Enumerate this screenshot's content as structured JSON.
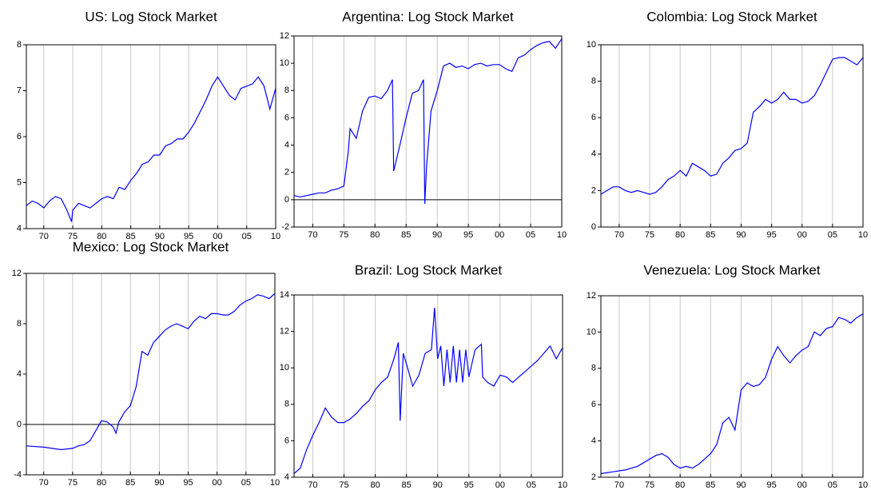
{
  "chart_data": [
    {
      "type": "line",
      "title": "US: Log Stock Market",
      "x": [
        1967,
        1968,
        1969,
        1970,
        1971,
        1972,
        1973,
        1974,
        1974.8,
        1975,
        1976,
        1977,
        1978,
        1979,
        1980,
        1981,
        1982,
        1983,
        1984,
        1985,
        1986,
        1987,
        1988,
        1989,
        1990,
        1991,
        1992,
        1993,
        1994,
        1995,
        1996,
        1997,
        1998,
        1999,
        2000,
        2001,
        2002,
        2003,
        2004,
        2005,
        2006,
        2007,
        2008,
        2009,
        2010
      ],
      "series": [
        {
          "color": "#0000ff",
          "values": [
            4.5,
            4.6,
            4.55,
            4.45,
            4.6,
            4.7,
            4.65,
            4.4,
            4.15,
            4.4,
            4.55,
            4.5,
            4.45,
            4.55,
            4.65,
            4.7,
            4.65,
            4.9,
            4.85,
            5.05,
            5.2,
            5.4,
            5.45,
            5.6,
            5.6,
            5.8,
            5.85,
            5.95,
            5.95,
            6.1,
            6.3,
            6.55,
            6.8,
            7.1,
            7.3,
            7.1,
            6.9,
            6.8,
            7.05,
            7.1,
            7.15,
            7.3,
            7.1,
            6.6,
            7.05
          ]
        }
      ],
      "xlim": [
        1967,
        2010
      ],
      "xticks": [
        {
          "value": 1970,
          "label": "70"
        },
        {
          "value": 1975,
          "label": "75"
        },
        {
          "value": 1980,
          "label": "80"
        },
        {
          "value": 1985,
          "label": "85"
        },
        {
          "value": 1990,
          "label": "90"
        },
        {
          "value": 1995,
          "label": "95"
        },
        {
          "value": 2000,
          "label": "00"
        },
        {
          "value": 2005,
          "label": "05"
        },
        {
          "value": 2010,
          "label": "10"
        }
      ],
      "ylim": [
        4,
        8
      ],
      "yticks": [
        4,
        5,
        6,
        7,
        8
      ],
      "grid": "x",
      "zero_line": false
    },
    {
      "type": "line",
      "title": "Argentina: Log Stock Market",
      "x": [
        1967,
        1968,
        1969,
        1970,
        1971,
        1972,
        1973,
        1974,
        1975,
        1975.7,
        1976,
        1977,
        1978,
        1979,
        1980,
        1981,
        1982,
        1982.8,
        1983,
        1984,
        1985,
        1986,
        1987,
        1987.8,
        1988,
        1988.3,
        1989,
        1990,
        1991,
        1992,
        1993,
        1994,
        1995,
        1996,
        1997,
        1998,
        1999,
        2000,
        2001,
        2002,
        2003,
        2004,
        2005,
        2006,
        2007,
        2008,
        2009,
        2010
      ],
      "series": [
        {
          "color": "#0000ff",
          "values": [
            0.3,
            0.2,
            0.3,
            0.4,
            0.5,
            0.5,
            0.7,
            0.8,
            1.0,
            3.5,
            5.2,
            4.5,
            6.5,
            7.5,
            7.6,
            7.4,
            8.0,
            8.8,
            2.1,
            4.0,
            6.0,
            7.8,
            8.0,
            8.8,
            -0.3,
            2.5,
            6.5,
            8.0,
            9.8,
            10.0,
            9.7,
            9.8,
            9.6,
            9.9,
            10.0,
            9.8,
            9.9,
            9.9,
            9.6,
            9.4,
            10.4,
            10.6,
            11.0,
            11.3,
            11.5,
            11.6,
            11.1,
            11.8
          ]
        }
      ],
      "xlim": [
        1967,
        2010
      ],
      "xticks": [
        {
          "value": 1970,
          "label": "70"
        },
        {
          "value": 1975,
          "label": "75"
        },
        {
          "value": 1980,
          "label": "80"
        },
        {
          "value": 1985,
          "label": "85"
        },
        {
          "value": 1990,
          "label": "90"
        },
        {
          "value": 1995,
          "label": "95"
        },
        {
          "value": 2000,
          "label": "00"
        },
        {
          "value": 2005,
          "label": "05"
        },
        {
          "value": 2010,
          "label": "10"
        }
      ],
      "ylim": [
        -2,
        12
      ],
      "yticks": [
        -2,
        0,
        2,
        4,
        6,
        8,
        10,
        12
      ],
      "grid": "x",
      "zero_line": true
    },
    {
      "type": "line",
      "title": "Colombia: Log Stock Market",
      "x": [
        1967,
        1968,
        1969,
        1970,
        1971,
        1972,
        1973,
        1974,
        1975,
        1976,
        1977,
        1978,
        1979,
        1980,
        1981,
        1982,
        1983,
        1984,
        1985,
        1986,
        1987,
        1988,
        1989,
        1990,
        1991,
        1992,
        1993,
        1994,
        1995,
        1996,
        1997,
        1998,
        1999,
        2000,
        2001,
        2002,
        2003,
        2004,
        2005,
        2006,
        2007,
        2008,
        2009,
        2010
      ],
      "series": [
        {
          "color": "#0000ff",
          "values": [
            1.8,
            2.0,
            2.2,
            2.2,
            2.0,
            1.9,
            2.0,
            1.9,
            1.8,
            1.9,
            2.2,
            2.6,
            2.8,
            3.1,
            2.8,
            3.5,
            3.3,
            3.1,
            2.8,
            2.9,
            3.5,
            3.8,
            4.2,
            4.3,
            4.6,
            6.3,
            6.6,
            7.0,
            6.8,
            7.0,
            7.4,
            7.0,
            7.0,
            6.8,
            6.9,
            7.2,
            7.8,
            8.5,
            9.2,
            9.3,
            9.3,
            9.1,
            8.9,
            9.3
          ]
        }
      ],
      "xlim": [
        1967,
        2010
      ],
      "xticks": [
        {
          "value": 1970,
          "label": "70"
        },
        {
          "value": 1975,
          "label": "75"
        },
        {
          "value": 1980,
          "label": "80"
        },
        {
          "value": 1985,
          "label": "85"
        },
        {
          "value": 1990,
          "label": "90"
        },
        {
          "value": 1995,
          "label": "95"
        },
        {
          "value": 2000,
          "label": "00"
        },
        {
          "value": 2005,
          "label": "05"
        },
        {
          "value": 2010,
          "label": "10"
        }
      ],
      "ylim": [
        0,
        10
      ],
      "yticks": [
        0,
        2,
        4,
        6,
        8,
        10
      ],
      "grid": "x",
      "zero_line": false
    },
    {
      "type": "line",
      "title": "Mexico: Log Stock Market",
      "x": [
        1967,
        1970,
        1973,
        1975,
        1976,
        1977,
        1978,
        1979,
        1980,
        1981,
        1982,
        1982.5,
        1983,
        1984,
        1985,
        1986,
        1987,
        1988,
        1989,
        1990,
        1991,
        1992,
        1993,
        1994,
        1995,
        1996,
        1997,
        1998,
        1999,
        2000,
        2001,
        2002,
        2003,
        2004,
        2005,
        2006,
        2007,
        2008,
        2009,
        2010
      ],
      "series": [
        {
          "color": "#0000ff",
          "values": [
            -1.7,
            -1.8,
            -2.0,
            -1.9,
            -1.7,
            -1.6,
            -1.3,
            -0.5,
            0.3,
            0.2,
            -0.2,
            -0.7,
            0.2,
            1.0,
            1.5,
            3.0,
            5.8,
            5.5,
            6.5,
            7.0,
            7.5,
            7.8,
            8.0,
            7.8,
            7.6,
            8.2,
            8.6,
            8.4,
            8.8,
            8.8,
            8.7,
            8.7,
            9.0,
            9.5,
            9.8,
            10.0,
            10.3,
            10.2,
            10.0,
            10.4
          ]
        }
      ],
      "xlim": [
        1967,
        2010
      ],
      "xticks": [
        {
          "value": 1970,
          "label": "70"
        },
        {
          "value": 1975,
          "label": "75"
        },
        {
          "value": 1980,
          "label": "80"
        },
        {
          "value": 1985,
          "label": "85"
        },
        {
          "value": 1990,
          "label": "90"
        },
        {
          "value": 1995,
          "label": "95"
        },
        {
          "value": 2000,
          "label": "00"
        },
        {
          "value": 2005,
          "label": "05"
        },
        {
          "value": 2010,
          "label": "10"
        }
      ],
      "ylim": [
        -4,
        12
      ],
      "yticks": [
        -4,
        0,
        4,
        8,
        12
      ],
      "grid": "x",
      "zero_line": true
    },
    {
      "type": "line",
      "title": "Brazil: Log Stock Market",
      "x": [
        1967,
        1968,
        1969,
        1970,
        1971,
        1972,
        1973,
        1974,
        1975,
        1976,
        1977,
        1978,
        1979,
        1980,
        1981,
        1982,
        1983,
        1983.7,
        1984,
        1984.5,
        1985,
        1986,
        1987,
        1988,
        1989,
        1989.5,
        1990,
        1990.5,
        1991,
        1991.5,
        1992,
        1992.5,
        1993,
        1993.5,
        1994,
        1994.5,
        1995,
        1996,
        1997,
        1997.2,
        1998,
        1999,
        2000,
        2001,
        2002,
        2003,
        2004,
        2005,
        2006,
        2007,
        2008,
        2009,
        2010
      ],
      "series": [
        {
          "color": "#0000ff",
          "values": [
            4.2,
            4.5,
            5.5,
            6.3,
            7.0,
            7.8,
            7.3,
            7.0,
            7.0,
            7.2,
            7.5,
            7.9,
            8.2,
            8.8,
            9.2,
            9.5,
            10.5,
            11.4,
            7.1,
            10.8,
            10.2,
            9.0,
            9.6,
            10.8,
            11.0,
            13.3,
            10.5,
            11.2,
            9.0,
            11.0,
            9.2,
            11.2,
            9.2,
            11.0,
            9.2,
            11.0,
            9.5,
            11.0,
            11.3,
            9.5,
            9.2,
            9.0,
            9.6,
            9.5,
            9.2,
            9.5,
            9.8,
            10.1,
            10.4,
            10.8,
            11.2,
            10.5,
            11.1
          ]
        }
      ],
      "xlim": [
        1967,
        2010
      ],
      "xticks": [
        {
          "value": 1970,
          "label": "70"
        },
        {
          "value": 1975,
          "label": "75"
        },
        {
          "value": 1980,
          "label": "80"
        },
        {
          "value": 1985,
          "label": "85"
        },
        {
          "value": 1990,
          "label": "90"
        },
        {
          "value": 1995,
          "label": "95"
        },
        {
          "value": 2000,
          "label": "00"
        },
        {
          "value": 2005,
          "label": "05"
        },
        {
          "value": 2010,
          "label": "10"
        }
      ],
      "ylim": [
        4,
        14
      ],
      "yticks": [
        4,
        6,
        8,
        10,
        12,
        14
      ],
      "grid": "x",
      "zero_line": false
    },
    {
      "type": "line",
      "title": "Venezuela: Log Stock Market",
      "x": [
        1967,
        1969,
        1971,
        1973,
        1975,
        1976,
        1977,
        1978,
        1979,
        1980,
        1981,
        1982,
        1983,
        1984,
        1985,
        1986,
        1987,
        1988,
        1989,
        1990,
        1991,
        1992,
        1993,
        1994,
        1995,
        1996,
        1997,
        1998,
        1999,
        2000,
        2001,
        2002,
        2003,
        2004,
        2005,
        2006,
        2007,
        2008,
        2009,
        2010
      ],
      "series": [
        {
          "color": "#0000ff",
          "values": [
            2.2,
            2.3,
            2.4,
            2.6,
            3.0,
            3.2,
            3.3,
            3.1,
            2.7,
            2.5,
            2.6,
            2.5,
            2.7,
            3.0,
            3.3,
            3.8,
            5.0,
            5.3,
            4.6,
            6.8,
            7.2,
            7.0,
            7.1,
            7.5,
            8.5,
            9.2,
            8.7,
            8.3,
            8.7,
            9.0,
            9.2,
            10.0,
            9.8,
            10.2,
            10.3,
            10.8,
            10.7,
            10.5,
            10.8,
            11.0
          ]
        }
      ],
      "xlim": [
        1967,
        2010
      ],
      "xticks": [
        {
          "value": 1970,
          "label": "70"
        },
        {
          "value": 1975,
          "label": "75"
        },
        {
          "value": 1980,
          "label": "80"
        },
        {
          "value": 1985,
          "label": "85"
        },
        {
          "value": 1990,
          "label": "90"
        },
        {
          "value": 1995,
          "label": "95"
        },
        {
          "value": 2000,
          "label": "00"
        },
        {
          "value": 2005,
          "label": "05"
        },
        {
          "value": 2010,
          "label": "10"
        }
      ],
      "ylim": [
        2,
        12
      ],
      "yticks": [
        2,
        4,
        6,
        8,
        10,
        12
      ],
      "grid": "x",
      "zero_line": false
    }
  ]
}
